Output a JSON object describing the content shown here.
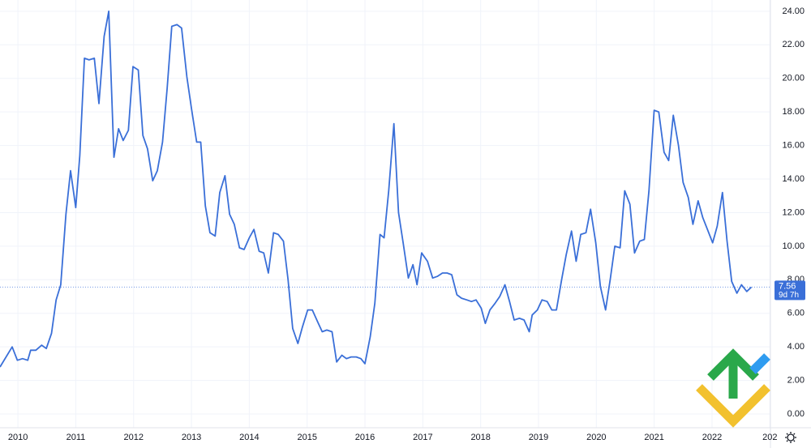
{
  "chart_data": {
    "type": "line",
    "x": [
      2009.69,
      2009.9,
      2009.99,
      2010.08,
      2010.17,
      2010.22,
      2010.31,
      2010.41,
      2010.49,
      2010.58,
      2010.66,
      2010.74,
      2010.83,
      2010.91,
      2011.0,
      2011.07,
      2011.15,
      2011.23,
      2011.32,
      2011.4,
      2011.49,
      2011.57,
      2011.66,
      2011.74,
      2011.82,
      2011.91,
      2011.99,
      2012.08,
      2012.16,
      2012.24,
      2012.33,
      2012.41,
      2012.5,
      2012.58,
      2012.66,
      2012.75,
      2012.83,
      2012.92,
      2013.0,
      2013.09,
      2013.16,
      2013.24,
      2013.32,
      2013.41,
      2013.49,
      2013.58,
      2013.66,
      2013.74,
      2013.83,
      2013.91,
      2014.0,
      2014.08,
      2014.17,
      2014.25,
      2014.33,
      2014.42,
      2014.5,
      2014.59,
      2014.67,
      2014.75,
      2014.84,
      2014.92,
      2015.01,
      2015.09,
      2015.18,
      2015.26,
      2015.34,
      2015.43,
      2015.51,
      2015.6,
      2015.68,
      2015.76,
      2015.85,
      2015.93,
      2016.0,
      2016.09,
      2016.17,
      2016.26,
      2016.33,
      2016.41,
      2016.5,
      2016.58,
      2016.66,
      2016.75,
      2016.83,
      2016.9,
      2016.98,
      2017.08,
      2017.17,
      2017.25,
      2017.34,
      2017.42,
      2017.5,
      2017.59,
      2017.67,
      2017.76,
      2017.84,
      2017.92,
      2018.01,
      2018.08,
      2018.16,
      2018.25,
      2018.33,
      2018.42,
      2018.5,
      2018.58,
      2018.67,
      2018.75,
      2018.84,
      2018.89,
      2018.98,
      2019.06,
      2019.15,
      2019.23,
      2019.31,
      2019.4,
      2019.48,
      2019.57,
      2019.65,
      2019.73,
      2019.82,
      2019.9,
      2019.99,
      2020.07,
      2020.16,
      2020.24,
      2020.32,
      2020.41,
      2020.49,
      2020.58,
      2020.66,
      2020.75,
      2020.83,
      2020.91,
      2021.0,
      2021.08,
      2021.17,
      2021.25,
      2021.33,
      2021.42,
      2021.5,
      2021.59,
      2021.67,
      2021.76,
      2021.84,
      2021.92,
      2022.01,
      2022.09,
      2022.18,
      2022.26,
      2022.34,
      2022.43,
      2022.51,
      2022.6,
      2022.68
    ],
    "series": [
      {
        "color": "#3a6fd8",
        "values": [
          2.8,
          4.0,
          3.2,
          3.3,
          3.2,
          3.8,
          3.8,
          4.1,
          3.9,
          4.8,
          6.8,
          7.7,
          11.9,
          14.5,
          12.3,
          15.4,
          21.2,
          21.1,
          21.2,
          18.5,
          22.5,
          24.0,
          15.3,
          17.0,
          16.3,
          16.9,
          20.7,
          20.5,
          16.6,
          15.8,
          13.9,
          14.5,
          16.2,
          19.4,
          23.1,
          23.2,
          23.0,
          20.1,
          18.2,
          16.2,
          16.2,
          12.4,
          10.8,
          10.6,
          13.2,
          14.2,
          11.9,
          11.3,
          9.9,
          9.8,
          10.5,
          11.0,
          9.7,
          9.6,
          8.4,
          10.8,
          10.7,
          10.3,
          8.0,
          5.1,
          4.2,
          5.2,
          6.2,
          6.2,
          5.5,
          4.9,
          5.0,
          4.9,
          3.1,
          3.5,
          3.3,
          3.4,
          3.4,
          3.3,
          3.0,
          4.6,
          6.6,
          10.7,
          10.5,
          13.3,
          17.3,
          12.0,
          10.2,
          8.1,
          8.9,
          7.7,
          9.6,
          9.1,
          8.1,
          8.2,
          8.4,
          8.4,
          8.3,
          7.1,
          6.9,
          6.8,
          6.7,
          6.8,
          6.3,
          5.4,
          6.2,
          6.6,
          7.0,
          7.7,
          6.7,
          5.6,
          5.7,
          5.6,
          4.9,
          5.9,
          6.2,
          6.8,
          6.7,
          6.2,
          6.2,
          8.0,
          9.5,
          10.9,
          9.1,
          10.7,
          10.8,
          12.2,
          10.2,
          7.6,
          6.2,
          8.0,
          10.0,
          9.9,
          13.3,
          12.5,
          9.6,
          10.3,
          10.4,
          13.3,
          18.1,
          18.0,
          15.6,
          15.1,
          17.8,
          16.0,
          13.8,
          12.9,
          11.3,
          12.7,
          11.7,
          11.0,
          10.2,
          11.2,
          13.2,
          10.3,
          7.9,
          7.2,
          7.7,
          7.3,
          7.56
        ]
      }
    ],
    "countdown": "9d 7h",
    "xlim": [
      2009.69,
      2023.01
    ],
    "ylim": [
      -0.82,
      24.67
    ],
    "xticks": [
      2010,
      2011,
      2012,
      2013,
      2014,
      2015,
      2016,
      2017,
      2018,
      2019,
      2020,
      2021,
      2022,
      {
        "value": 2023,
        "label": "202"
      }
    ],
    "yticks": [
      {
        "value": 0,
        "label": "0.00"
      },
      {
        "value": 2,
        "label": "2.00"
      },
      {
        "value": 4,
        "label": "4.00"
      },
      {
        "value": 6,
        "label": "6.00"
      },
      {
        "value": 8,
        "label": "8.00"
      },
      {
        "value": 10,
        "label": "10.00"
      },
      {
        "value": 12,
        "label": "12.00"
      },
      {
        "value": 14,
        "label": "14.00"
      },
      {
        "value": 16,
        "label": "16.00"
      },
      {
        "value": 18,
        "label": "18.00"
      },
      {
        "value": 20,
        "label": "20.00"
      },
      {
        "value": 22,
        "label": "22.00"
      },
      {
        "value": 24,
        "label": "24.00"
      }
    ],
    "grid": true
  }
}
